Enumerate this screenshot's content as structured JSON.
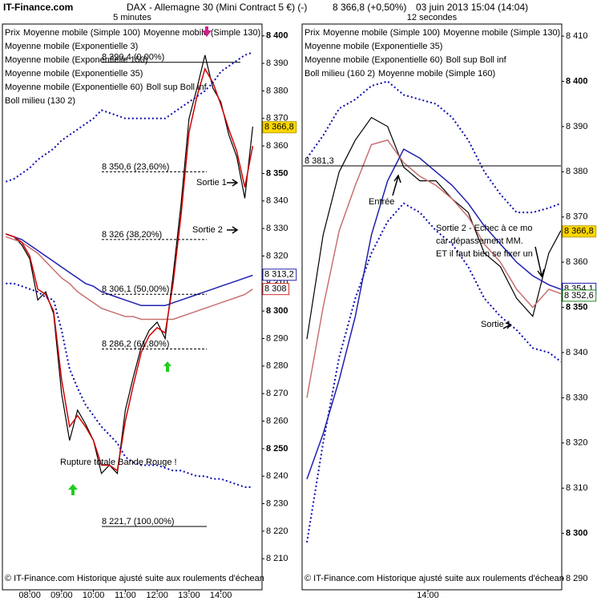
{
  "header": {
    "site": "IT-Finance.com",
    "title": "DAX - Allemagne 30 (Mini Contract 5 €) (-)",
    "quote": "8 366,8 (+0,50%)",
    "datetime": "03 juin 2013 15:04 (14:04)"
  },
  "chart_data": [
    {
      "type": "line",
      "title": "5 minutes",
      "x": [
        "07:15",
        "07:30",
        "07:45",
        "08:00",
        "08:15",
        "08:30",
        "08:45",
        "09:00",
        "09:15",
        "09:30",
        "09:45",
        "10:00",
        "10:15",
        "10:30",
        "10:45",
        "11:00",
        "11:15",
        "11:30",
        "11:45",
        "12:00",
        "12:15",
        "12:30",
        "12:45",
        "13:00",
        "13:15",
        "13:30",
        "13:45",
        "14:00",
        "14:15",
        "14:30",
        "14:45",
        "15:00"
      ],
      "xlim": [
        "07:10",
        "15:16"
      ],
      "xticks": [
        "08:00",
        "09:00",
        "10:00",
        "11:00",
        "12:00",
        "13:00",
        "14:00"
      ],
      "ylim": [
        8199,
        8404
      ],
      "yticks": [
        {
          "value": 8400,
          "label": "8 400"
        },
        {
          "value": 8390,
          "label": "8 390"
        },
        {
          "value": 8380,
          "label": "8 380"
        },
        {
          "value": 8370,
          "label": "8 370"
        },
        {
          "value": 8360,
          "label": "8 360"
        },
        {
          "value": 8350,
          "label": "8 350"
        },
        {
          "value": 8340,
          "label": "8 340"
        },
        {
          "value": 8330,
          "label": "8 330"
        },
        {
          "value": 8320,
          "label": "8 320"
        },
        {
          "value": 8310,
          "label": "8 310"
        },
        {
          "value": 8300,
          "label": "8 300"
        },
        {
          "value": 8290,
          "label": "8 290"
        },
        {
          "value": 8280,
          "label": "8 280"
        },
        {
          "value": 8270,
          "label": "8 270"
        },
        {
          "value": 8260,
          "label": "8 260"
        },
        {
          "value": 8250,
          "label": "8 250"
        },
        {
          "value": 8240,
          "label": "8 240"
        },
        {
          "value": 8230,
          "label": "8 230"
        },
        {
          "value": 8220,
          "label": "8 220"
        },
        {
          "value": 8210,
          "label": "8 210"
        }
      ],
      "series": [
        {
          "name": "Prix",
          "color": "#000000",
          "values": [
            8328,
            8327,
            8324,
            8319,
            8304,
            8307,
            8299,
            8270,
            8253,
            8264,
            8259,
            8253,
            8241,
            8244,
            8241,
            8264,
            8276,
            8287,
            8293,
            8296,
            8290,
            8313,
            8339,
            8370,
            8381,
            8393,
            8381,
            8376,
            8364,
            8356,
            8341,
            8367
          ]
        },
        {
          "name": "Moyenne mobile (Simple 100)",
          "color": "#c87070",
          "values": [
            8327,
            8326,
            8325,
            8323,
            8321,
            8318,
            8315,
            8312,
            8310,
            8307,
            8305,
            8303,
            8301,
            8300,
            8299,
            8298,
            8298,
            8297,
            8297,
            8297,
            8297,
            8297,
            8298,
            8299,
            8300,
            8301,
            8302,
            8303,
            8304,
            8305,
            8306,
            8308
          ]
        },
        {
          "name": "Moyenne mobile (Simple 130)",
          "color": "#2020b0",
          "values": [
            8328,
            8327,
            8326,
            8324,
            8322,
            8320,
            8318,
            8316,
            8314,
            8312,
            8310,
            8309,
            8307,
            8306,
            8305,
            8304,
            8303,
            8302,
            8302,
            8302,
            8302,
            8303,
            8304,
            8305,
            8306,
            8307,
            8308,
            8309,
            8310,
            8311,
            8312,
            8313
          ]
        },
        {
          "name": "Moyenne mobile (Exponentielle 3)",
          "color": "#d00000",
          "values": [
            8328,
            8327,
            8325,
            8320,
            8308,
            8306,
            8300,
            8275,
            8258,
            8262,
            8258,
            8253,
            8244,
            8244,
            8242,
            8260,
            8273,
            8285,
            8291,
            8294,
            8292,
            8310,
            8335,
            8365,
            8378,
            8388,
            8383,
            8375,
            8366,
            8358,
            8345,
            8360
          ]
        },
        {
          "name": "Moyenne mobile (Exponentielle 150)",
          "color": "#d03030"
        },
        {
          "name": "Moyenne mobile (Exponentielle 35)",
          "color": "#c87070"
        },
        {
          "name": "Moyenne mobile (Exponentielle 60)",
          "color": "#c87070"
        },
        {
          "name": "Boll sup Boll inf",
          "color": "#0a0ab0",
          "values": [
            8347,
            8348,
            8350,
            8352,
            8355,
            8357,
            8359,
            8362,
            8364,
            8366,
            8368,
            8370,
            8373,
            8372,
            8371,
            8370,
            8370,
            8370,
            8370,
            8370,
            8370,
            8372,
            8374,
            8376,
            8378,
            8380,
            8383,
            8387,
            8389,
            8391,
            8393,
            8394
          ],
          "lower": [
            8310,
            8310,
            8309,
            8308,
            8307,
            8305,
            8304,
            8293,
            8279,
            8272,
            8266,
            8262,
            8258,
            8255,
            8252,
            8247,
            8245,
            8244,
            8244,
            8244,
            8243,
            8242,
            8242,
            8241,
            8240,
            8240,
            8239,
            8239,
            8238,
            8237,
            8236,
            8236
          ]
        },
        {
          "name": "Boll milieu (130 2)",
          "color": "#7a1a9a"
        }
      ],
      "levels": [
        {
          "value": 8390.4,
          "label": "8 390,4 (0,00%)"
        },
        {
          "value": 8350.6,
          "label": "8 350,6 (23,60%)"
        },
        {
          "value": 8326,
          "label": "8 326 (38,20%)"
        },
        {
          "value": 8306.1,
          "label": "8 306,1 (50,00%)"
        },
        {
          "value": 8286.2,
          "label": "8 286,2 (61,80%)"
        },
        {
          "value": 8221.7,
          "label": "8 221,7 (100,00%)"
        }
      ],
      "price_labels": [
        {
          "value": 8366.8,
          "label": "8 366,8",
          "color": "#000000",
          "background": "#ffd700"
        },
        {
          "value": 8313.2,
          "label": "8 313,2",
          "color": "#2020b0",
          "background": "#ffffff"
        },
        {
          "value": 8308,
          "label": "8 308",
          "color": "#d03030",
          "background": "#ffffff"
        }
      ],
      "annotations": [
        {
          "text": "Sortie 1",
          "color": "#222222"
        },
        {
          "text": "Sortie 2",
          "color": "#222222"
        },
        {
          "text": "Rupture totale Bande Rouge !",
          "color": "#2a8a2a"
        }
      ],
      "footer": "© IT-Finance.com  Historique ajusté suite aux roulements d'échean"
    },
    {
      "type": "line",
      "title": "12 secondes",
      "x": [
        "13:30",
        "13:34",
        "13:38",
        "13:42",
        "13:46",
        "13:50",
        "13:54",
        "13:58",
        "14:02",
        "14:06",
        "14:10",
        "14:14",
        "14:18",
        "14:22",
        "14:26",
        "14:30",
        "14:33"
      ],
      "xlim": [
        "13:29",
        "14:33"
      ],
      "xticks": [
        "14:00"
      ],
      "ylim": [
        8287.7,
        8412.5
      ],
      "yticks": [
        {
          "value": 8410,
          "label": "8 410"
        },
        {
          "value": 8400,
          "label": "8 400"
        },
        {
          "value": 8390,
          "label": "8 390"
        },
        {
          "value": 8380,
          "label": "8 380"
        },
        {
          "value": 8370,
          "label": "8 370"
        },
        {
          "value": 8360,
          "label": "8 360"
        },
        {
          "value": 8350,
          "label": "8 350"
        },
        {
          "value": 8340,
          "label": "8 340"
        },
        {
          "value": 8330,
          "label": "8 330"
        },
        {
          "value": 8320,
          "label": "8 320"
        },
        {
          "value": 8310,
          "label": "8 310"
        },
        {
          "value": 8300,
          "label": "8 300"
        },
        {
          "value": 8290,
          "label": "8 290"
        }
      ],
      "series": [
        {
          "name": "Prix",
          "color": "#000000",
          "values": [
            8343,
            8366,
            8380,
            8387,
            8392,
            8390,
            8381,
            8378,
            8378,
            8374,
            8371,
            8362,
            8359,
            8352,
            8348,
            8362,
            8367
          ]
        },
        {
          "name": "Moyenne mobile (Simple 100)",
          "color": "#c87070"
        },
        {
          "name": "Moyenne mobile (Simple 130)",
          "color": "#1a8a1a"
        },
        {
          "name": "Moyenne mobile (Exponentielle 35)",
          "color": "#c87070",
          "values": [
            8330,
            8350,
            8367,
            8377,
            8386,
            8387,
            8382,
            8379,
            8377,
            8374,
            8370,
            8364,
            8360,
            8354,
            8350,
            8354,
            8353
          ]
        },
        {
          "name": "Moyenne mobile (Exponentielle 60)",
          "color": "#c87070"
        },
        {
          "name": "Boll sup Boll inf",
          "color": "#0a0ab0",
          "values": [
            8383,
            8388,
            8394,
            8396,
            8399,
            8400,
            8397,
            8396,
            8395,
            8392,
            8387,
            8380,
            8375,
            8371,
            8371,
            8372,
            8373
          ],
          "lower": [
            8298,
            8320,
            8339,
            8352,
            8362,
            8369,
            8373,
            8371,
            8367,
            8364,
            8359,
            8352,
            8348,
            8345,
            8341,
            8340,
            8338
          ]
        },
        {
          "name": "Boll milieu (160 2)",
          "color": "#7a1a9a"
        },
        {
          "name": "Moyenne mobile (Simple 160)",
          "color": "#2020b0",
          "values": [
            8312,
            8322,
            8334,
            8348,
            8366,
            8378,
            8385,
            8383,
            8380,
            8377,
            8373,
            8368,
            8364,
            8360,
            8357,
            8355,
            8354
          ]
        }
      ],
      "ref_lines": [
        {
          "value": 8381.3,
          "label": "8 381,3"
        }
      ],
      "price_labels": [
        {
          "value": 8366.8,
          "label": "8 366,8",
          "color": "#000000",
          "background": "#ffd700"
        },
        {
          "value": 8354.1,
          "label": "8 354,1",
          "color": "#2020b0",
          "background": "#ffffff"
        },
        {
          "value": 8352.6,
          "label": "8 352,6",
          "color": "#1a8a1a",
          "background": "#ffffff"
        }
      ],
      "annotations": [
        {
          "text": "Entrée",
          "color": "#222222"
        },
        {
          "text": "Sortie 2 - Echec à ce mo",
          "color": "#222222"
        },
        {
          "text": "car dépassement  MM.",
          "color": "#222222"
        },
        {
          "text": "ET il faut bien se fixer un",
          "color": "#222222"
        },
        {
          "text": "Sortie 1",
          "color": "#222222"
        }
      ],
      "footer": "© IT-Finance.com  Historique ajusté suite aux roulements d'échean"
    }
  ]
}
